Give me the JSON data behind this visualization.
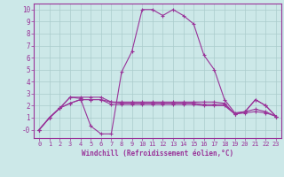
{
  "background_color": "#cce8e8",
  "grid_color": "#aacccc",
  "line_color": "#993399",
  "marker_color": "#993399",
  "xlabel": "Windchill (Refroidissement éolien,°C)",
  "xlim": [
    -0.5,
    23.5
  ],
  "ylim": [
    -0.7,
    10.5
  ],
  "yticks": [
    0,
    1,
    2,
    3,
    4,
    5,
    6,
    7,
    8,
    9,
    10
  ],
  "xticks": [
    0,
    1,
    2,
    3,
    4,
    5,
    6,
    7,
    8,
    9,
    10,
    11,
    12,
    13,
    14,
    15,
    16,
    17,
    18,
    19,
    20,
    21,
    22,
    23
  ],
  "ytick_labels": [
    "-0",
    "1",
    "2",
    "3",
    "4",
    "5",
    "6",
    "7",
    "8",
    "9",
    "10"
  ],
  "series": [
    {
      "x": [
        0,
        1,
        2,
        3,
        4,
        5,
        6,
        7,
        8,
        9,
        10,
        11,
        12,
        13,
        14,
        15,
        16,
        17,
        18,
        19,
        20,
        21,
        22,
        23
      ],
      "y": [
        0.0,
        1.0,
        1.8,
        2.7,
        2.6,
        0.3,
        -0.35,
        -0.35,
        4.8,
        6.5,
        10.0,
        10.0,
        9.5,
        10.0,
        9.5,
        8.8,
        6.2,
        5.0,
        2.5,
        1.4,
        1.5,
        2.5,
        2.0,
        1.1
      ]
    },
    {
      "x": [
        0,
        1,
        2,
        3,
        4,
        5,
        6,
        7,
        8,
        9,
        10,
        11,
        12,
        13,
        14,
        15,
        16,
        17,
        18,
        19,
        20,
        21,
        22,
        23
      ],
      "y": [
        0.0,
        1.0,
        1.8,
        2.7,
        2.7,
        2.7,
        2.7,
        2.3,
        2.3,
        2.3,
        2.3,
        2.3,
        2.3,
        2.3,
        2.3,
        2.3,
        2.3,
        2.3,
        2.2,
        1.3,
        1.5,
        2.5,
        2.0,
        1.1
      ]
    },
    {
      "x": [
        0,
        1,
        2,
        3,
        4,
        5,
        6,
        7,
        8,
        9,
        10,
        11,
        12,
        13,
        14,
        15,
        16,
        17,
        18,
        19,
        20,
        21,
        22,
        23
      ],
      "y": [
        0.0,
        1.0,
        1.8,
        2.2,
        2.5,
        2.5,
        2.5,
        2.3,
        2.2,
        2.2,
        2.2,
        2.2,
        2.2,
        2.2,
        2.2,
        2.2,
        2.1,
        2.1,
        2.1,
        1.3,
        1.5,
        1.7,
        1.5,
        1.1
      ]
    },
    {
      "x": [
        0,
        1,
        2,
        3,
        4,
        5,
        6,
        7,
        8,
        9,
        10,
        11,
        12,
        13,
        14,
        15,
        16,
        17,
        18,
        19,
        20,
        21,
        22,
        23
      ],
      "y": [
        0.0,
        1.0,
        1.8,
        2.2,
        2.5,
        2.5,
        2.5,
        2.1,
        2.1,
        2.1,
        2.1,
        2.1,
        2.1,
        2.1,
        2.1,
        2.1,
        2.0,
        2.0,
        2.0,
        1.3,
        1.4,
        1.5,
        1.4,
        1.1
      ]
    }
  ]
}
